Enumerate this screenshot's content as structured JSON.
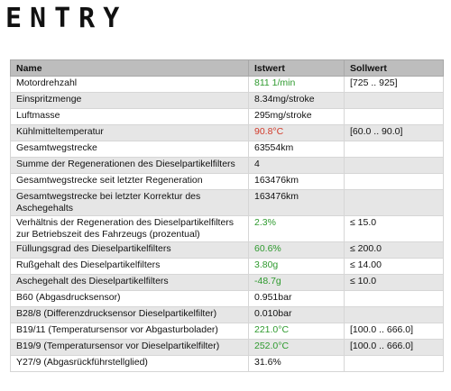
{
  "header": {
    "brand": "ENTRY"
  },
  "table": {
    "columns": [
      "Name",
      "Istwert",
      "Sollwert"
    ],
    "rows": [
      {
        "name": "Motordrehzahl",
        "value": "811 1/min",
        "target": "[725 .. 925]",
        "status": "ok"
      },
      {
        "name": "Einspritzmenge",
        "value": "8.34mg/stroke",
        "target": "",
        "status": "none"
      },
      {
        "name": "Luftmasse",
        "value": "295mg/stroke",
        "target": "",
        "status": "none"
      },
      {
        "name": "Kühlmitteltemperatur",
        "value": "90.8°C",
        "target": "[60.0 .. 90.0]",
        "status": "fail"
      },
      {
        "name": "Gesamtwegstrecke",
        "value": "63554km",
        "target": "",
        "status": "none"
      },
      {
        "name": "Summe der Regenerationen des Dieselpartikelfilters",
        "value": "4",
        "target": "",
        "status": "none"
      },
      {
        "name": "Gesamtwegstrecke seit letzter Regeneration",
        "value": "163476km",
        "target": "",
        "status": "none"
      },
      {
        "name": "Gesamtwegstrecke bei letzter Korrektur des Aschegehalts",
        "value": "163476km",
        "target": "",
        "status": "none"
      },
      {
        "name": "Verhältnis der Regeneration des Dieselpartikelfilters zur Betriebszeit des Fahrzeugs (prozentual)",
        "value": "2.3%",
        "target": "≤ 15.0",
        "status": "ok"
      },
      {
        "name": "Füllungsgrad des Dieselpartikelfilters",
        "value": "60.6%",
        "target": "≤ 200.0",
        "status": "ok"
      },
      {
        "name": "Rußgehalt des Dieselpartikelfilters",
        "value": "3.80g",
        "target": "≤ 14.00",
        "status": "ok"
      },
      {
        "name": "Aschegehalt des Dieselpartikelfilters",
        "value": "-48.7g",
        "target": "≤ 10.0",
        "status": "ok"
      },
      {
        "name": "B60 (Abgasdrucksensor)",
        "value": "0.951bar",
        "target": "",
        "status": "none"
      },
      {
        "name": "B28/8 (Differenzdrucksensor Dieselpartikelfilter)",
        "value": "0.010bar",
        "target": "",
        "status": "none"
      },
      {
        "name": "B19/11 (Temperatursensor vor Abgasturbolader)",
        "value": "221.0°C",
        "target": "[100.0 .. 666.0]",
        "status": "ok"
      },
      {
        "name": "B19/9 (Temperatursensor vor Dieselpartikelfilter)",
        "value": "252.0°C",
        "target": "[100.0 .. 666.0]",
        "status": "ok"
      },
      {
        "name": "Y27/9 (Abgasrückführstellglied)",
        "value": "31.6%",
        "target": "",
        "status": "none"
      }
    ]
  },
  "colors": {
    "ok": "#2e9a2e",
    "fail": "#d23a2a",
    "header_bg": "#bdbdbd",
    "stripe": "#e6e6e6"
  }
}
